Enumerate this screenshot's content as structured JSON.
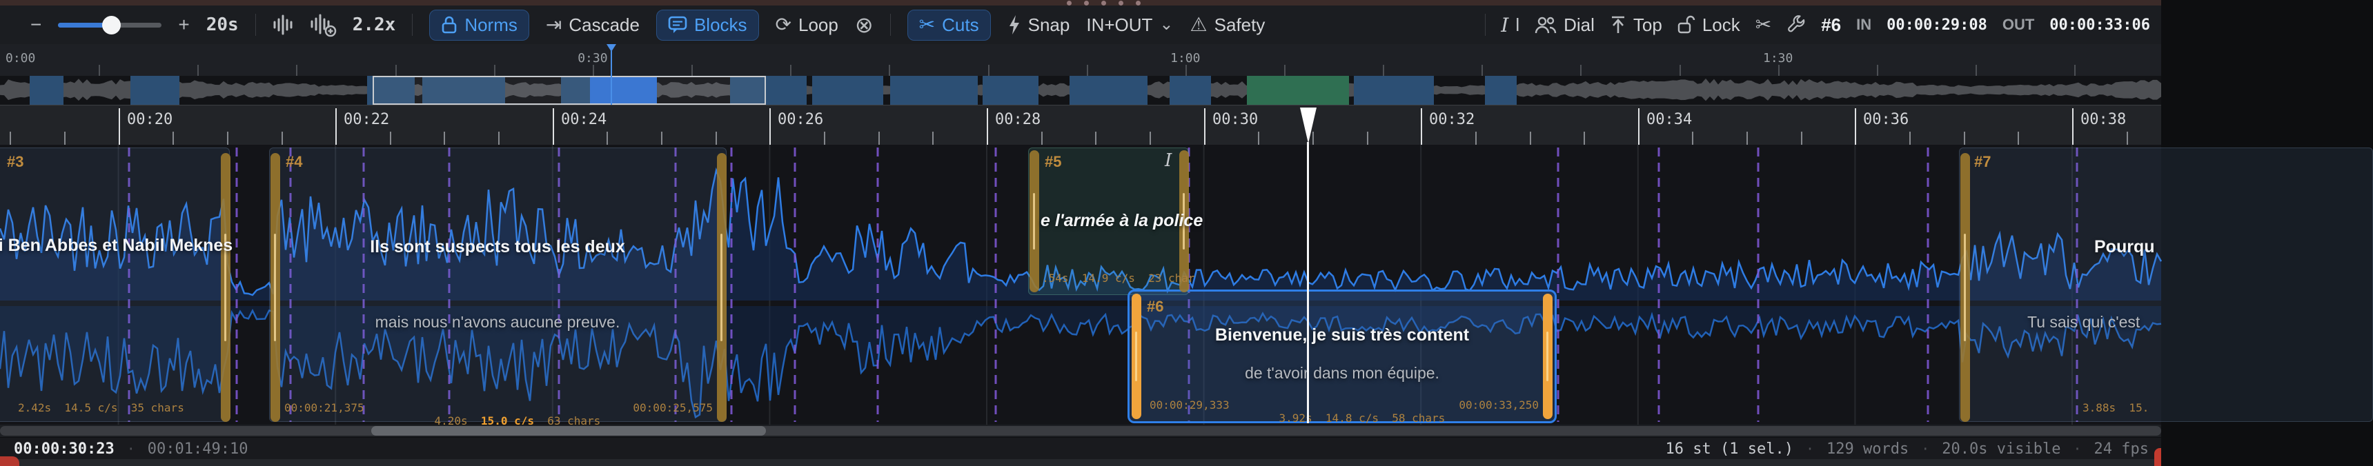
{
  "icons": {
    "minus": "−",
    "plus": "+",
    "cascade": "⇥",
    "loop": "⟳",
    "cancel": "⊗",
    "scissors": "✂",
    "warning": "⚠",
    "chevron": "⌄",
    "italic": "I",
    "cursor": "l"
  },
  "toolbar": {
    "window_length": "20s",
    "wave_scale": "2.2x",
    "norms": "Norms",
    "cascade": "Cascade",
    "blocks": "Blocks",
    "loop": "Loop",
    "cuts": "Cuts",
    "snap": "Snap",
    "in_out": "IN+OUT",
    "safety": "Safety",
    "dial": "Dial",
    "top": "Top",
    "lock": "Lock",
    "selected_num": "#6",
    "in_label": "IN",
    "in_tc": "00:00:29:08",
    "out_label": "OUT",
    "out_tc": "00:00:33:06"
  },
  "overview": {
    "labels": [
      "0:00",
      "0:30",
      "1:00",
      "1:30"
    ]
  },
  "ruler": {
    "labels": [
      "00:20",
      "00:22",
      "00:24",
      "00:26",
      "00:28",
      "00:30",
      "00:32",
      "00:34",
      "00:36",
      "00:38"
    ]
  },
  "subtitles": {
    "s3": {
      "num": "#3",
      "line1": "ri Ben Abbes et Nabil Meknes",
      "stats": "2.42s  14.5 c/s  35 chars"
    },
    "s4": {
      "num": "#4",
      "line1": "Ils sont suspects tous les deux",
      "line2": "mais nous n'avons aucune preuve.",
      "tc_in": "00:00:21,375",
      "dur": "4.20s",
      "cps": "15.0 c/s",
      "chars": "63 chars",
      "tc_out": "00:00:25,575"
    },
    "s5": {
      "num": "#5",
      "italic_flag": "I",
      "line1": "e l'armée à la police",
      "stats": ".54s  14.9 c/s  23 char"
    },
    "s6": {
      "num": "#6",
      "line1": "Bienvenue, je suis très content",
      "line2": "de t'avoir dans mon équipe.",
      "tc_in": "00:00:29,333",
      "dur": "3.92s",
      "cps": "14.8 c/s",
      "chars": "58 chars",
      "tc_out": "00:00:33,250"
    },
    "s7": {
      "num": "#7",
      "line1": "Pourqu",
      "line2": "Tu sais qui c'est",
      "stats": "3.88s  15."
    }
  },
  "statusbar": {
    "current_tc": "00:00:30:23",
    "duration_tc": "00:01:49:10",
    "subtitle_count": "16 st (1 sel.)",
    "words": "129 words",
    "visible": "20.0s visible",
    "fps": "24 fps",
    "sep": "·"
  },
  "colors": {
    "accent_blue": "#4da0f5",
    "selection_blue": "#2f7fe8",
    "handle_amber": "#c08c3e",
    "cut_purple": "#8159d9",
    "wave_blue": "#2e7ce4",
    "highlight_orange": "#f0a030"
  }
}
